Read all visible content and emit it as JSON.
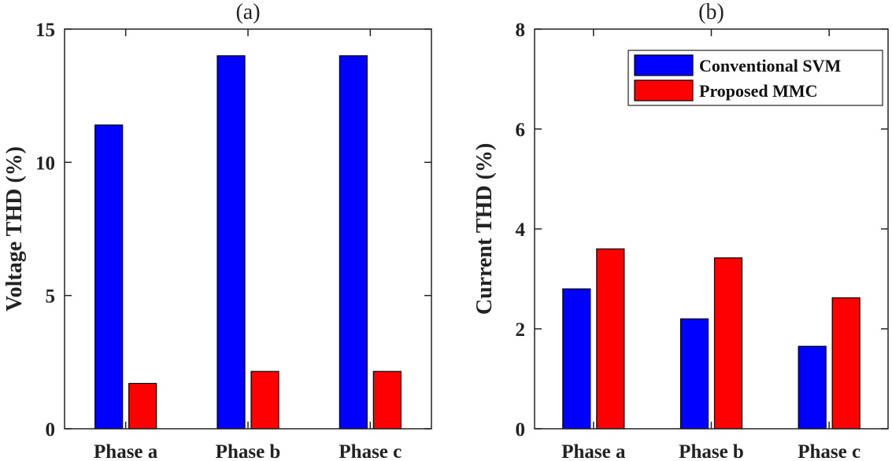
{
  "chart_data": [
    {
      "type": "bar",
      "title": "(a)",
      "xlabel": "",
      "ylabel": "Voltage THD (%)",
      "categories": [
        "Phase a",
        "Phase b",
        "Phase c"
      ],
      "ylim": [
        0,
        15
      ],
      "yticks": [
        0,
        5,
        10,
        15
      ],
      "series": [
        {
          "name": "Conventional SVM",
          "color": "#0000FF",
          "values": [
            11.4,
            14.0,
            14.0
          ]
        },
        {
          "name": "Proposed MMC",
          "color": "#FF0000",
          "values": [
            1.7,
            2.15,
            2.15
          ]
        }
      ],
      "legend": null
    },
    {
      "type": "bar",
      "title": "(b)",
      "xlabel": "",
      "ylabel": "Current THD (%)",
      "categories": [
        "Phase a",
        "Phase b",
        "Phase c"
      ],
      "ylim": [
        0,
        8
      ],
      "yticks": [
        0,
        2,
        4,
        6,
        8
      ],
      "series": [
        {
          "name": "Conventional SVM",
          "color": "#0000FF",
          "values": [
            2.8,
            2.2,
            1.65
          ]
        },
        {
          "name": "Proposed MMC",
          "color": "#FF0000",
          "values": [
            3.6,
            3.42,
            2.62
          ]
        }
      ],
      "legend": {
        "position": "top-right",
        "entries": [
          "Conventional SVM",
          "Proposed MMC"
        ]
      }
    }
  ]
}
